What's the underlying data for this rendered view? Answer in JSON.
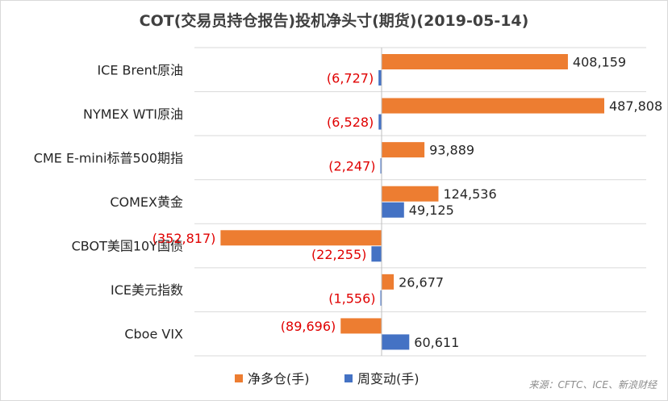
{
  "chart_data": {
    "type": "bar",
    "orientation": "horizontal",
    "title": "COT(交易员持仓报告)投机净头寸(期货)(2019-05-14)",
    "categories": [
      "ICE Brent原油",
      "NYMEX WTI原油",
      "CME E-mini标普500期指",
      "COMEX黄金",
      "CBOT美国10Y国债",
      "ICE美元指数",
      "Cboe VIX"
    ],
    "series": [
      {
        "name": "净多仓(手)",
        "color": "#ed7d31",
        "values": [
          408159,
          487808,
          93889,
          124536,
          -352817,
          26677,
          -89696
        ],
        "labels": [
          "408,159",
          "487,808",
          "93,889",
          "124,536",
          "(352,817)",
          "26,677",
          "(89,696)"
        ]
      },
      {
        "name": "周变动(手)",
        "color": "#4472c4",
        "values": [
          -6727,
          -6528,
          -2247,
          49125,
          -22255,
          -1556,
          60611
        ],
        "labels": [
          "(6,727)",
          "(6,528)",
          "(2,247)",
          "49,125",
          "(22,255)",
          "(1,556)",
          "60,611"
        ]
      }
    ],
    "xlim": [
      -360000,
      490000
    ],
    "grid": "horizontal separators between categories",
    "legend": "bottom-center",
    "negative_label_color": "#e00000",
    "source": "来源：CFTC、ICE、新浪财经"
  }
}
